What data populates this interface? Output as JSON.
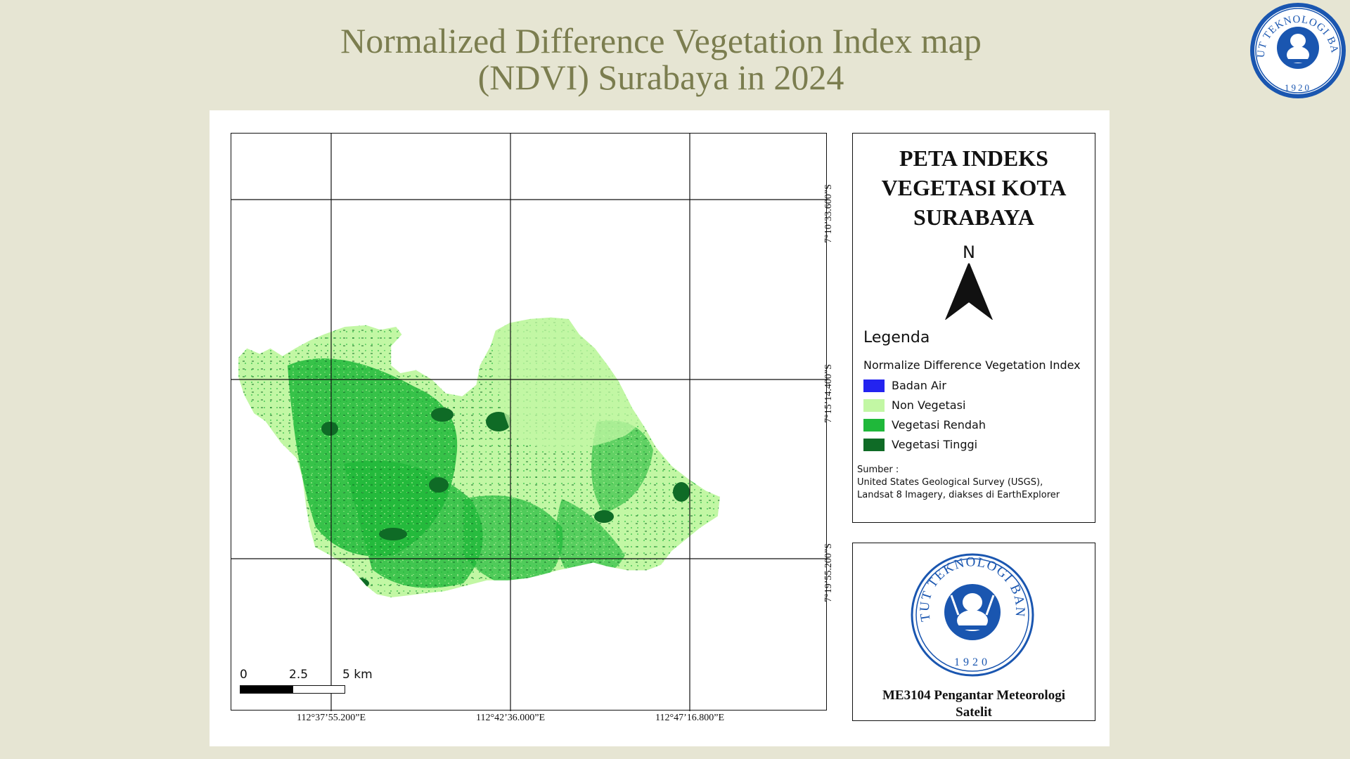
{
  "slide": {
    "title_line1": "Normalized Difference Vegetation Index map",
    "title_line2": "(NDVI) Surabaya in 2024"
  },
  "map": {
    "lat_labels": [
      "7°10’33.600”S",
      "7°15’14.400”S",
      "7°19’55.200”S"
    ],
    "lon_labels": [
      "112°37’55.200”E",
      "112°42’36.000”E",
      "112°47’16.800”E"
    ],
    "scale": {
      "ticks": [
        "0",
        "2.5",
        "5 km"
      ]
    }
  },
  "legend": {
    "title_line1": "PETA INDEKS",
    "title_line2": "VEGETASI KOTA",
    "title_line3": "SURABAYA",
    "north": "N",
    "heading": "Legenda",
    "subheading": "Normalize Difference Vegetation Index",
    "items": [
      {
        "label": "Badan Air",
        "color": "#2323f0"
      },
      {
        "label": "Non Vegetasi",
        "color": "#c2f7a4"
      },
      {
        "label": "Vegetasi Rendah",
        "color": "#1fb83a"
      },
      {
        "label": "Vegetasi Tinggi",
        "color": "#0f6b26"
      }
    ],
    "source_label": "Sumber :",
    "source_line1": "United States Geological Survey (USGS),",
    "source_line2": "Landsat 8 Imagery, diakses di EarthExplorer"
  },
  "logo": {
    "institution": "INSTITUT TEKNOLOGI BANDUNG",
    "year": "1920",
    "course_line1": "ME3104 Pengantar Meteorologi",
    "course_line2": "Satelit"
  },
  "colors": {
    "background": "#e6e5d3",
    "title": "#7b7d4f",
    "seal_blue": "#1a56b0"
  }
}
